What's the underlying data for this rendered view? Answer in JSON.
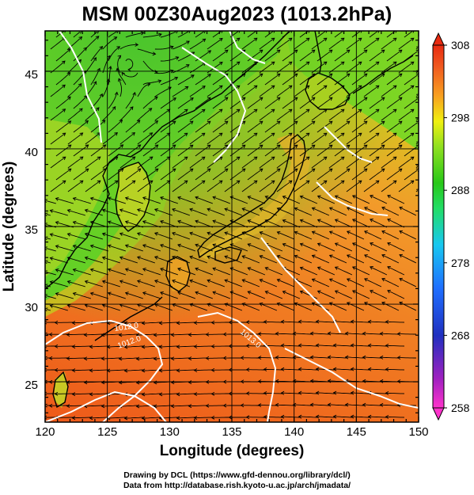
{
  "title": "MSM 00Z30Aug2023 (1013.2hPa)",
  "credits": {
    "line1": "Drawing by DCL (https://www.gfd-dennou.org/library/dcl/)",
    "line2": "Data from http://database.rish.kyoto-u.ac.jp/arch/jmadata/"
  },
  "map": {
    "xlabel": "Longitude (degrees)",
    "ylabel": "Latitude  (degrees)",
    "lon_range": [
      120,
      150
    ],
    "lat_range": [
      22.4,
      47.6
    ],
    "x_ticks": [
      "120",
      "125",
      "130",
      "135",
      "140",
      "145",
      "150"
    ],
    "y_ticks": [
      "25",
      "30",
      "35",
      "40",
      "45"
    ],
    "contour_labels": [
      "1012.0",
      "1013.0",
      "1012.0"
    ],
    "colorbar": {
      "ticks": [
        "308",
        "298",
        "288",
        "278",
        "268",
        "258"
      ],
      "range": [
        258,
        308
      ],
      "colors": [
        "#ff33cc",
        "#a020c0",
        "#2030c0",
        "#1f6fff",
        "#18c8f0",
        "#22dd66",
        "#28c818",
        "#90e020",
        "#f0f010",
        "#f8a020",
        "#f05a20",
        "#e82a10"
      ]
    },
    "colors": {
      "warm_sea": "#f07a1e",
      "warm_south": "#ee5c1a",
      "cool_north": "#58d028",
      "land_mid": "#a8d820",
      "isobar": "#ffffff",
      "streamline": "#000000"
    }
  }
}
